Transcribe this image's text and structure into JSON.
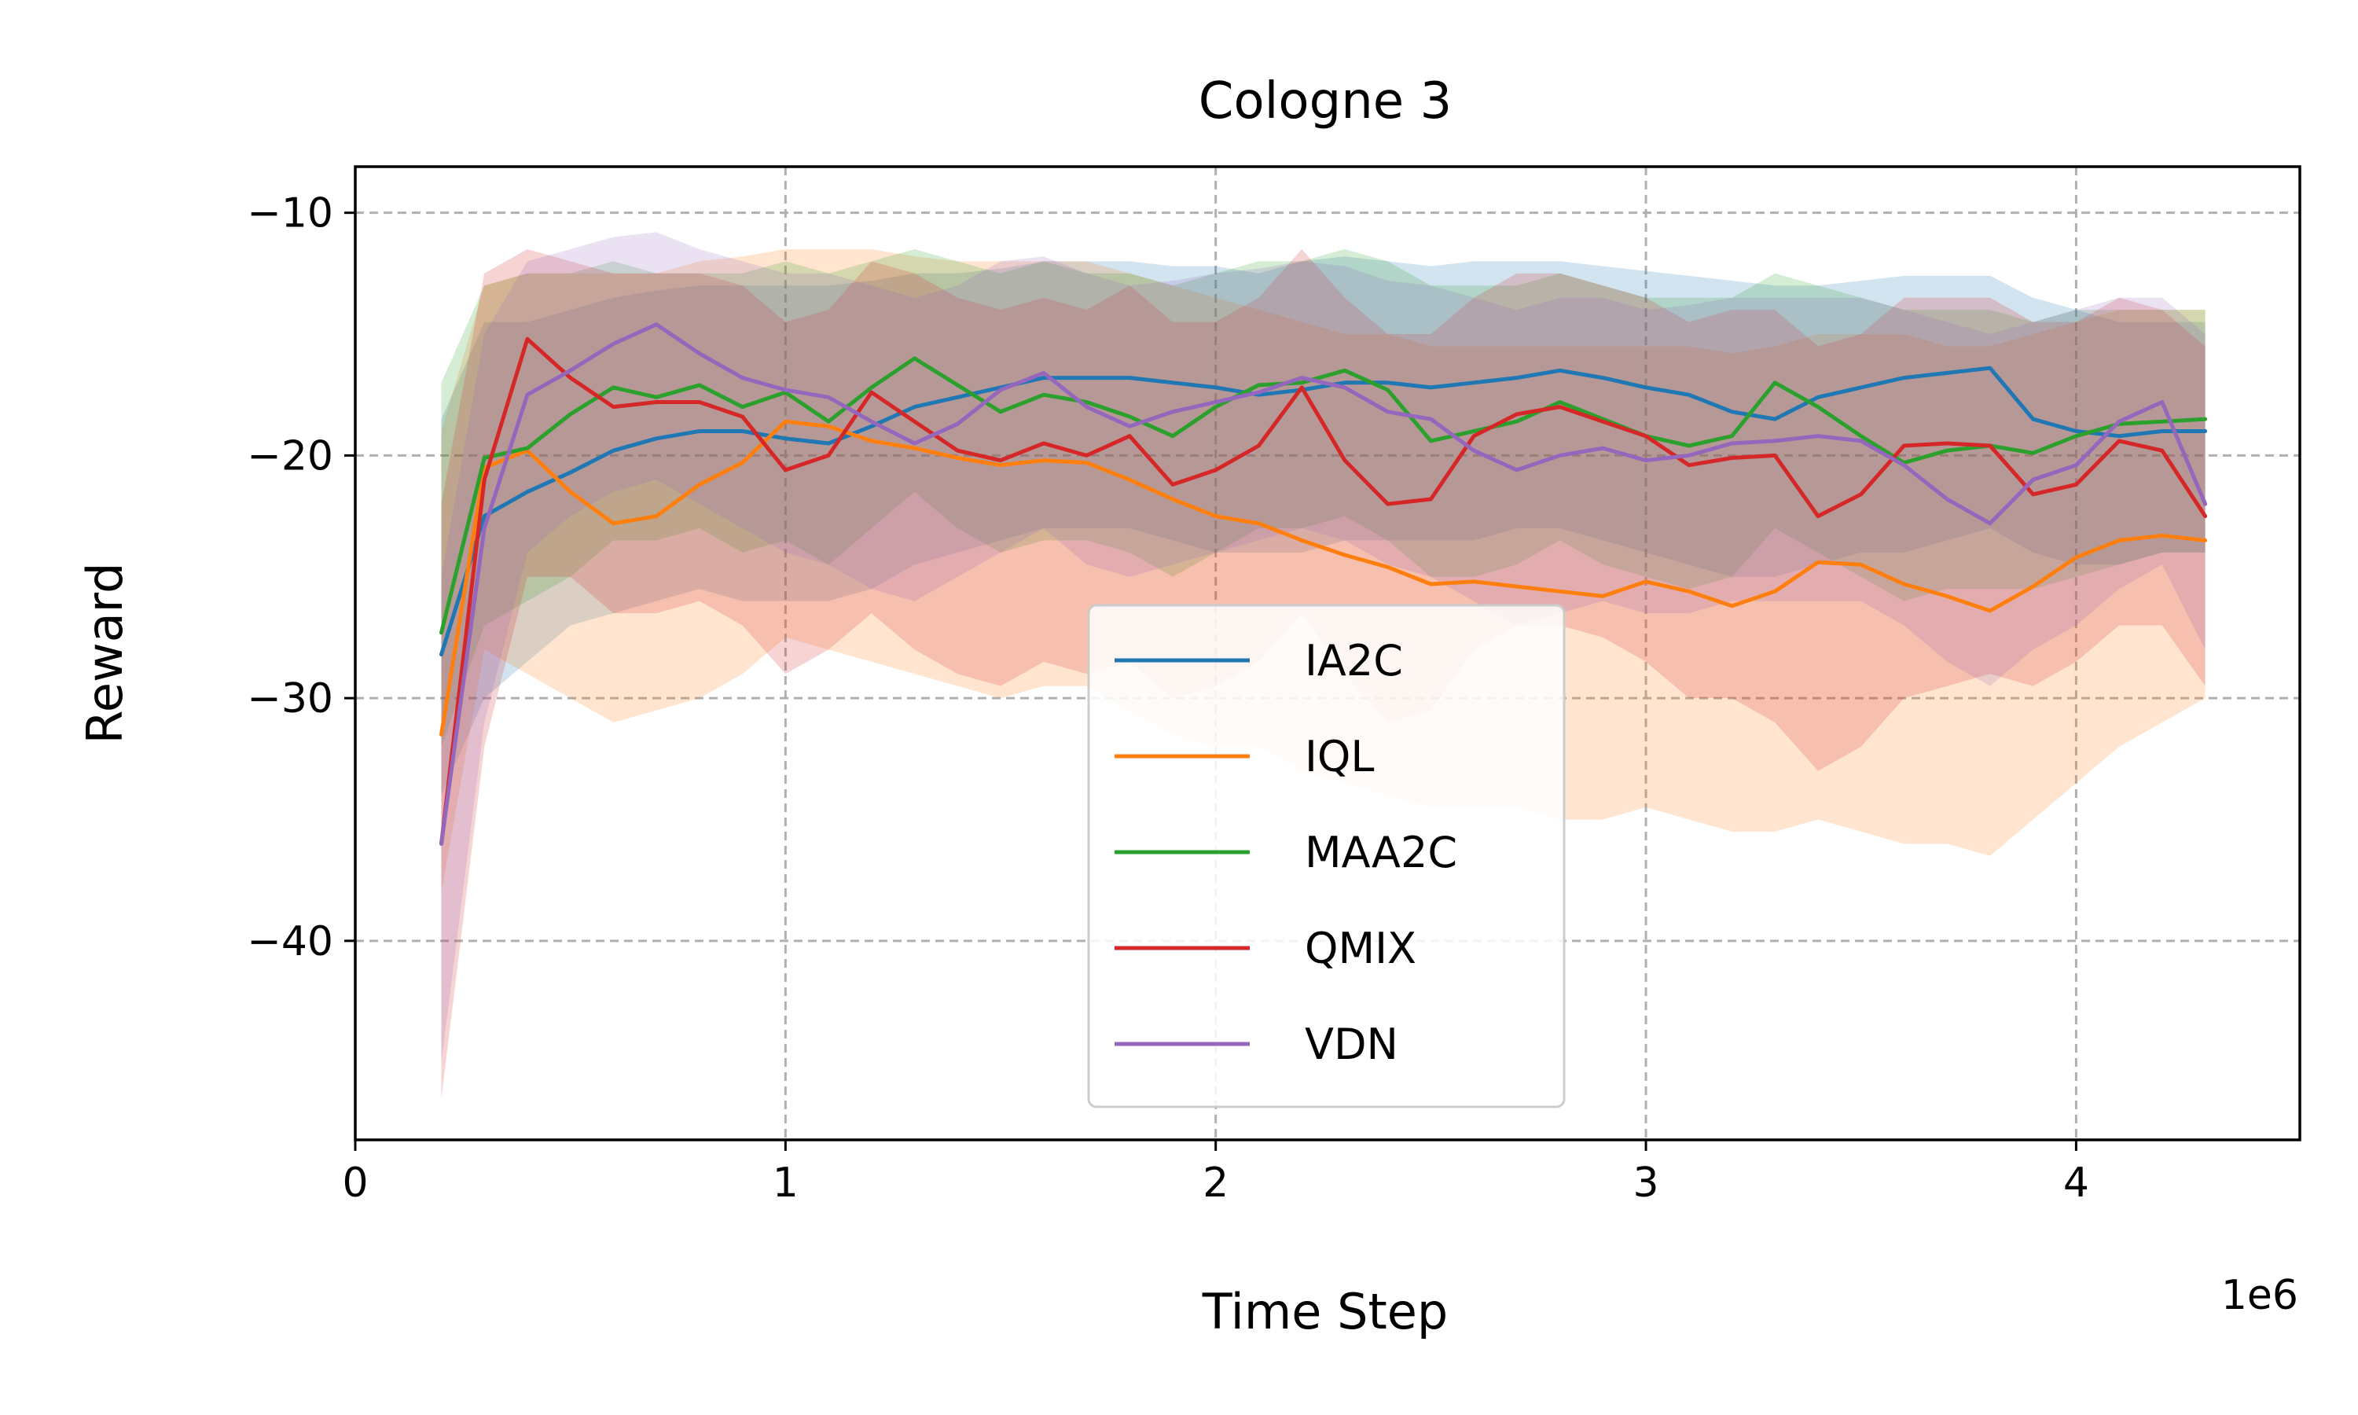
{
  "chart_data": {
    "type": "line",
    "title": "Cologne 3",
    "xlabel": "Time Step",
    "ylabel": "Reward",
    "x_offset_text": "1e6",
    "xlim": [
      0,
      4.52
    ],
    "ylim": [
      -48.2,
      -8.1
    ],
    "xticks": [
      0,
      1,
      2,
      3,
      4
    ],
    "xtick_labels": [
      "0",
      "1",
      "2",
      "3",
      "4"
    ],
    "yticks": [
      -10,
      -20,
      -30,
      -40
    ],
    "ytick_labels": [
      "−10",
      "−20",
      "−30",
      "−40"
    ],
    "grid": true,
    "legend_position": "lower-center",
    "x": [
      0.2,
      0.3,
      0.4,
      0.5,
      0.6,
      0.7,
      0.8,
      0.9,
      1.0,
      1.1,
      1.2,
      1.3,
      1.4,
      1.5,
      1.6,
      1.7,
      1.8,
      1.9,
      2.0,
      2.1,
      2.2,
      2.3,
      2.4,
      2.5,
      2.6,
      2.7,
      2.8,
      2.9,
      3.0,
      3.1,
      3.2,
      3.3,
      3.4,
      3.5,
      3.6,
      3.7,
      3.8,
      3.9,
      4.0,
      4.1,
      4.2,
      4.3
    ],
    "series": [
      {
        "name": "IA2C",
        "color": "#1f77b4",
        "values": [
          -28.2,
          -22.5,
          -21.5,
          -20.7,
          -19.8,
          -19.3,
          -19.0,
          -19.0,
          -19.3,
          -19.5,
          -18.8,
          -18.0,
          -17.6,
          -17.2,
          -16.8,
          -16.8,
          -16.8,
          -17.0,
          -17.2,
          -17.5,
          -17.3,
          -17.0,
          -17.0,
          -17.2,
          -17.0,
          -16.8,
          -16.5,
          -16.8,
          -17.2,
          -17.5,
          -18.2,
          -18.5,
          -17.6,
          -17.2,
          -16.8,
          -16.6,
          -16.4,
          -18.5,
          -19.0,
          -19.2,
          -19.0,
          -19.0
        ],
        "upper": [
          -18.5,
          -14.5,
          -14.5,
          -14.0,
          -13.5,
          -13.2,
          -13.0,
          -13.0,
          -13.0,
          -13.0,
          -12.8,
          -12.5,
          -12.5,
          -12.3,
          -12.0,
          -12.0,
          -12.0,
          -12.2,
          -12.2,
          -12.5,
          -12.0,
          -11.8,
          -12.0,
          -12.2,
          -12.0,
          -12.0,
          -12.0,
          -12.2,
          -12.4,
          -12.6,
          -12.8,
          -13.0,
          -13.0,
          -12.8,
          -12.6,
          -12.6,
          -12.6,
          -13.5,
          -14.0,
          -14.5,
          -14.5,
          -14.5
        ],
        "lower": [
          -34.0,
          -30.0,
          -28.5,
          -27.0,
          -26.5,
          -26.0,
          -25.5,
          -26.0,
          -26.0,
          -26.0,
          -25.5,
          -24.5,
          -24.0,
          -23.5,
          -23.0,
          -23.0,
          -23.0,
          -23.5,
          -24.0,
          -24.0,
          -24.0,
          -23.5,
          -23.5,
          -23.5,
          -23.5,
          -23.0,
          -23.0,
          -23.5,
          -24.0,
          -24.5,
          -25.0,
          -25.0,
          -24.5,
          -24.0,
          -24.0,
          -23.5,
          -23.0,
          -24.0,
          -24.5,
          -24.5,
          -24.0,
          -24.0
        ]
      },
      {
        "name": "IQL",
        "color": "#ff7f0e",
        "values": [
          -31.5,
          -20.5,
          -19.8,
          -21.5,
          -22.8,
          -22.5,
          -21.2,
          -20.3,
          -18.6,
          -18.8,
          -19.4,
          -19.7,
          -20.1,
          -20.4,
          -20.2,
          -20.3,
          -21.0,
          -21.8,
          -22.5,
          -22.8,
          -23.5,
          -24.1,
          -24.6,
          -25.3,
          -25.2,
          -25.4,
          -25.6,
          -25.8,
          -25.2,
          -25.6,
          -26.2,
          -25.6,
          -24.4,
          -24.5,
          -25.3,
          -25.8,
          -26.4,
          -25.4,
          -24.2,
          -23.5,
          -23.3,
          -23.5
        ],
        "upper": [
          -19.0,
          -13.0,
          -12.5,
          -12.5,
          -12.5,
          -12.5,
          -12.0,
          -11.8,
          -11.5,
          -11.5,
          -11.5,
          -11.8,
          -12.0,
          -12.0,
          -12.0,
          -12.0,
          -12.5,
          -13.0,
          -13.5,
          -14.0,
          -14.5,
          -15.0,
          -15.0,
          -15.5,
          -15.5,
          -15.5,
          -15.5,
          -15.5,
          -15.5,
          -15.5,
          -15.8,
          -15.5,
          -15.0,
          -15.0,
          -15.0,
          -15.5,
          -15.5,
          -15.0,
          -14.5,
          -14.0,
          -14.0,
          -14.0
        ],
        "lower": [
          -38.0,
          -28.0,
          -29.0,
          -30.0,
          -31.0,
          -30.5,
          -30.0,
          -29.0,
          -27.5,
          -28.0,
          -28.5,
          -29.0,
          -29.5,
          -30.0,
          -29.5,
          -29.5,
          -30.5,
          -31.5,
          -32.0,
          -32.0,
          -33.0,
          -33.5,
          -34.0,
          -34.5,
          -34.5,
          -34.5,
          -35.0,
          -35.0,
          -34.5,
          -35.0,
          -35.5,
          -35.5,
          -35.0,
          -35.5,
          -36.0,
          -36.0,
          -36.5,
          -35.0,
          -33.5,
          -32.0,
          -31.0,
          -30.0
        ]
      },
      {
        "name": "MAA2C",
        "color": "#2ca02c",
        "values": [
          -27.3,
          -20.1,
          -19.7,
          -18.3,
          -17.2,
          -17.6,
          -17.1,
          -18.0,
          -17.4,
          -18.6,
          -17.2,
          -16.0,
          -17.1,
          -18.2,
          -17.5,
          -17.8,
          -18.4,
          -19.2,
          -18.0,
          -17.1,
          -17.0,
          -16.5,
          -17.3,
          -19.4,
          -19.0,
          -18.6,
          -17.8,
          -18.5,
          -19.2,
          -19.6,
          -19.2,
          -17.0,
          -18.0,
          -19.2,
          -20.3,
          -19.8,
          -19.6,
          -19.9,
          -19.2,
          -18.7,
          -18.6,
          -18.5
        ],
        "upper": [
          -17.0,
          -13.0,
          -12.5,
          -12.5,
          -12.0,
          -12.5,
          -12.5,
          -12.5,
          -12.0,
          -12.5,
          -12.0,
          -11.5,
          -12.0,
          -12.5,
          -12.0,
          -12.5,
          -12.5,
          -13.0,
          -12.5,
          -12.0,
          -12.0,
          -11.5,
          -12.0,
          -13.0,
          -13.0,
          -13.0,
          -12.5,
          -13.0,
          -13.5,
          -13.5,
          -13.5,
          -12.5,
          -13.0,
          -13.5,
          -14.0,
          -14.0,
          -14.0,
          -14.5,
          -14.0,
          -14.0,
          -14.0,
          -14.0
        ],
        "lower": [
          -32.0,
          -27.0,
          -26.0,
          -25.0,
          -23.5,
          -23.5,
          -23.0,
          -24.0,
          -23.5,
          -24.5,
          -23.0,
          -21.5,
          -23.0,
          -24.0,
          -23.5,
          -23.5,
          -24.0,
          -25.0,
          -24.0,
          -23.0,
          -23.0,
          -22.5,
          -23.5,
          -25.0,
          -25.0,
          -24.5,
          -23.5,
          -24.5,
          -25.0,
          -25.5,
          -25.0,
          -23.0,
          -24.0,
          -25.0,
          -26.0,
          -25.5,
          -25.5,
          -25.5,
          -25.0,
          -24.5,
          -24.0,
          -24.0
        ]
      },
      {
        "name": "QMIX",
        "color": "#d62728",
        "values": [
          -36.0,
          -21.0,
          -15.2,
          -16.8,
          -18.0,
          -17.8,
          -17.8,
          -18.4,
          -20.6,
          -20.0,
          -17.4,
          -18.6,
          -19.8,
          -20.2,
          -19.5,
          -20.0,
          -19.2,
          -21.2,
          -20.6,
          -19.6,
          -17.2,
          -20.2,
          -22.0,
          -21.8,
          -19.2,
          -18.3,
          -18.0,
          -18.6,
          -19.2,
          -20.4,
          -20.1,
          -20.0,
          -22.5,
          -21.6,
          -19.6,
          -19.5,
          -19.6,
          -21.6,
          -21.2,
          -19.4,
          -19.8,
          -22.5
        ],
        "upper": [
          -22.0,
          -12.5,
          -11.5,
          -12.0,
          -12.5,
          -12.5,
          -12.5,
          -13.0,
          -14.5,
          -14.0,
          -12.0,
          -12.5,
          -13.5,
          -14.0,
          -13.5,
          -14.0,
          -13.0,
          -14.5,
          -14.5,
          -13.5,
          -11.5,
          -13.5,
          -15.0,
          -15.0,
          -13.5,
          -12.5,
          -12.5,
          -13.0,
          -13.5,
          -14.5,
          -14.0,
          -14.0,
          -15.5,
          -15.0,
          -13.5,
          -13.5,
          -13.5,
          -14.5,
          -14.5,
          -13.5,
          -14.0,
          -15.5
        ],
        "lower": [
          -46.5,
          -32.0,
          -25.0,
          -25.0,
          -26.5,
          -26.5,
          -26.0,
          -27.0,
          -29.0,
          -28.0,
          -26.5,
          -28.0,
          -29.0,
          -29.5,
          -28.5,
          -29.0,
          -28.5,
          -30.0,
          -29.5,
          -28.5,
          -26.5,
          -29.0,
          -31.0,
          -30.5,
          -28.0,
          -27.0,
          -27.0,
          -27.5,
          -28.5,
          -30.0,
          -30.0,
          -31.0,
          -33.0,
          -32.0,
          -30.0,
          -29.5,
          -29.0,
          -29.5,
          -28.5,
          -27.0,
          -27.0,
          -29.5
        ]
      },
      {
        "name": "VDN",
        "color": "#9467bd",
        "values": [
          -36.0,
          -23.0,
          -17.5,
          -16.5,
          -15.4,
          -14.6,
          -15.8,
          -16.8,
          -17.3,
          -17.6,
          -18.6,
          -19.5,
          -18.7,
          -17.3,
          -16.6,
          -18.0,
          -18.8,
          -18.2,
          -17.8,
          -17.4,
          -16.8,
          -17.2,
          -18.2,
          -18.5,
          -19.8,
          -20.6,
          -20.0,
          -19.7,
          -20.2,
          -20.0,
          -19.5,
          -19.4,
          -19.2,
          -19.4,
          -20.4,
          -21.8,
          -22.8,
          -21.0,
          -20.4,
          -18.6,
          -17.8,
          -22.0
        ],
        "upper": [
          -25.0,
          -15.0,
          -12.0,
          -11.5,
          -11.0,
          -10.8,
          -11.5,
          -12.0,
          -12.5,
          -12.5,
          -13.0,
          -13.5,
          -13.0,
          -12.0,
          -11.8,
          -12.5,
          -13.0,
          -12.8,
          -12.5,
          -12.3,
          -12.0,
          -12.2,
          -12.8,
          -13.0,
          -13.5,
          -14.0,
          -13.5,
          -13.5,
          -14.0,
          -13.8,
          -13.5,
          -13.5,
          -13.5,
          -13.5,
          -14.0,
          -14.5,
          -15.0,
          -14.5,
          -14.0,
          -13.5,
          -13.5,
          -15.0
        ],
        "lower": [
          -45.0,
          -31.0,
          -24.0,
          -22.5,
          -21.5,
          -21.0,
          -22.0,
          -23.0,
          -24.0,
          -24.5,
          -25.5,
          -26.0,
          -25.0,
          -24.0,
          -23.0,
          -24.5,
          -25.0,
          -24.5,
          -24.0,
          -23.5,
          -23.0,
          -23.5,
          -24.5,
          -25.0,
          -26.0,
          -27.0,
          -26.5,
          -26.0,
          -26.5,
          -26.5,
          -26.0,
          -26.0,
          -26.0,
          -26.0,
          -27.0,
          -28.5,
          -29.5,
          -28.0,
          -27.0,
          -25.5,
          -24.5,
          -28.0
        ]
      }
    ]
  }
}
